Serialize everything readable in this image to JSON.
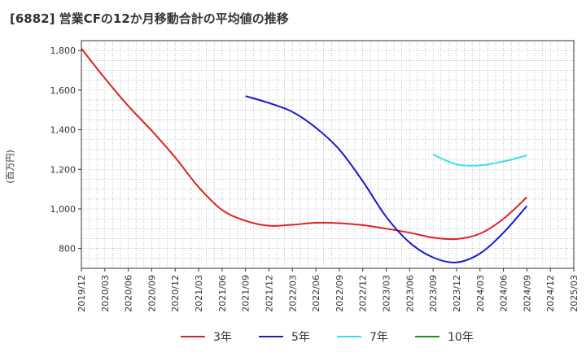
{
  "chart_data": {
    "type": "line",
    "title": "[6882]  営業CFの12か月移動合計の平均値の推移",
    "ylabel": "(百万円)",
    "xlabel": "",
    "ylim": [
      700,
      1850
    ],
    "yticks": [
      800,
      1000,
      1200,
      1400,
      1600,
      1800
    ],
    "ytick_labels": [
      "800",
      "1,000",
      "1,200",
      "1,400",
      "1,600",
      "1,800"
    ],
    "xlim": [
      "2019-12",
      "2025-03"
    ],
    "xtick_labels": [
      "2019/12",
      "2020/03",
      "2020/06",
      "2020/09",
      "2020/12",
      "2021/03",
      "2021/06",
      "2021/09",
      "2021/12",
      "2022/03",
      "2022/06",
      "2022/09",
      "2022/12",
      "2023/03",
      "2023/06",
      "2023/09",
      "2023/12",
      "2024/03",
      "2024/06",
      "2024/09",
      "2024/12",
      "2025/03"
    ],
    "grid": true,
    "legend_position": "bottom",
    "series": [
      {
        "name": "3年",
        "color": "#dd2222",
        "points": [
          [
            "2019-12",
            1810
          ],
          [
            "2020-03",
            1660
          ],
          [
            "2020-06",
            1520
          ],
          [
            "2020-09",
            1395
          ],
          [
            "2020-12",
            1260
          ],
          [
            "2021-03",
            1110
          ],
          [
            "2021-06",
            995
          ],
          [
            "2021-09",
            940
          ],
          [
            "2021-12",
            915
          ],
          [
            "2022-03",
            920
          ],
          [
            "2022-06",
            930
          ],
          [
            "2022-09",
            928
          ],
          [
            "2022-12",
            918
          ],
          [
            "2023-03",
            900
          ],
          [
            "2023-06",
            880
          ],
          [
            "2023-09",
            855
          ],
          [
            "2023-12",
            848
          ],
          [
            "2024-03",
            875
          ],
          [
            "2024-06",
            950
          ],
          [
            "2024-09",
            1060
          ]
        ]
      },
      {
        "name": "5年",
        "color": "#1a1acc",
        "points": [
          [
            "2021-09",
            1570
          ],
          [
            "2021-12",
            1535
          ],
          [
            "2022-03",
            1490
          ],
          [
            "2022-06",
            1410
          ],
          [
            "2022-09",
            1300
          ],
          [
            "2022-12",
            1140
          ],
          [
            "2023-03",
            960
          ],
          [
            "2023-06",
            830
          ],
          [
            "2023-09",
            755
          ],
          [
            "2023-12",
            730
          ],
          [
            "2024-03",
            775
          ],
          [
            "2024-06",
            880
          ],
          [
            "2024-09",
            1015
          ]
        ]
      },
      {
        "name": "7年",
        "color": "#33e0ee",
        "points": [
          [
            "2023-09",
            1275
          ],
          [
            "2023-12",
            1225
          ],
          [
            "2024-03",
            1220
          ],
          [
            "2024-06",
            1240
          ],
          [
            "2024-09",
            1270
          ]
        ]
      },
      {
        "name": "10年",
        "color": "#228b22",
        "points": []
      }
    ]
  }
}
